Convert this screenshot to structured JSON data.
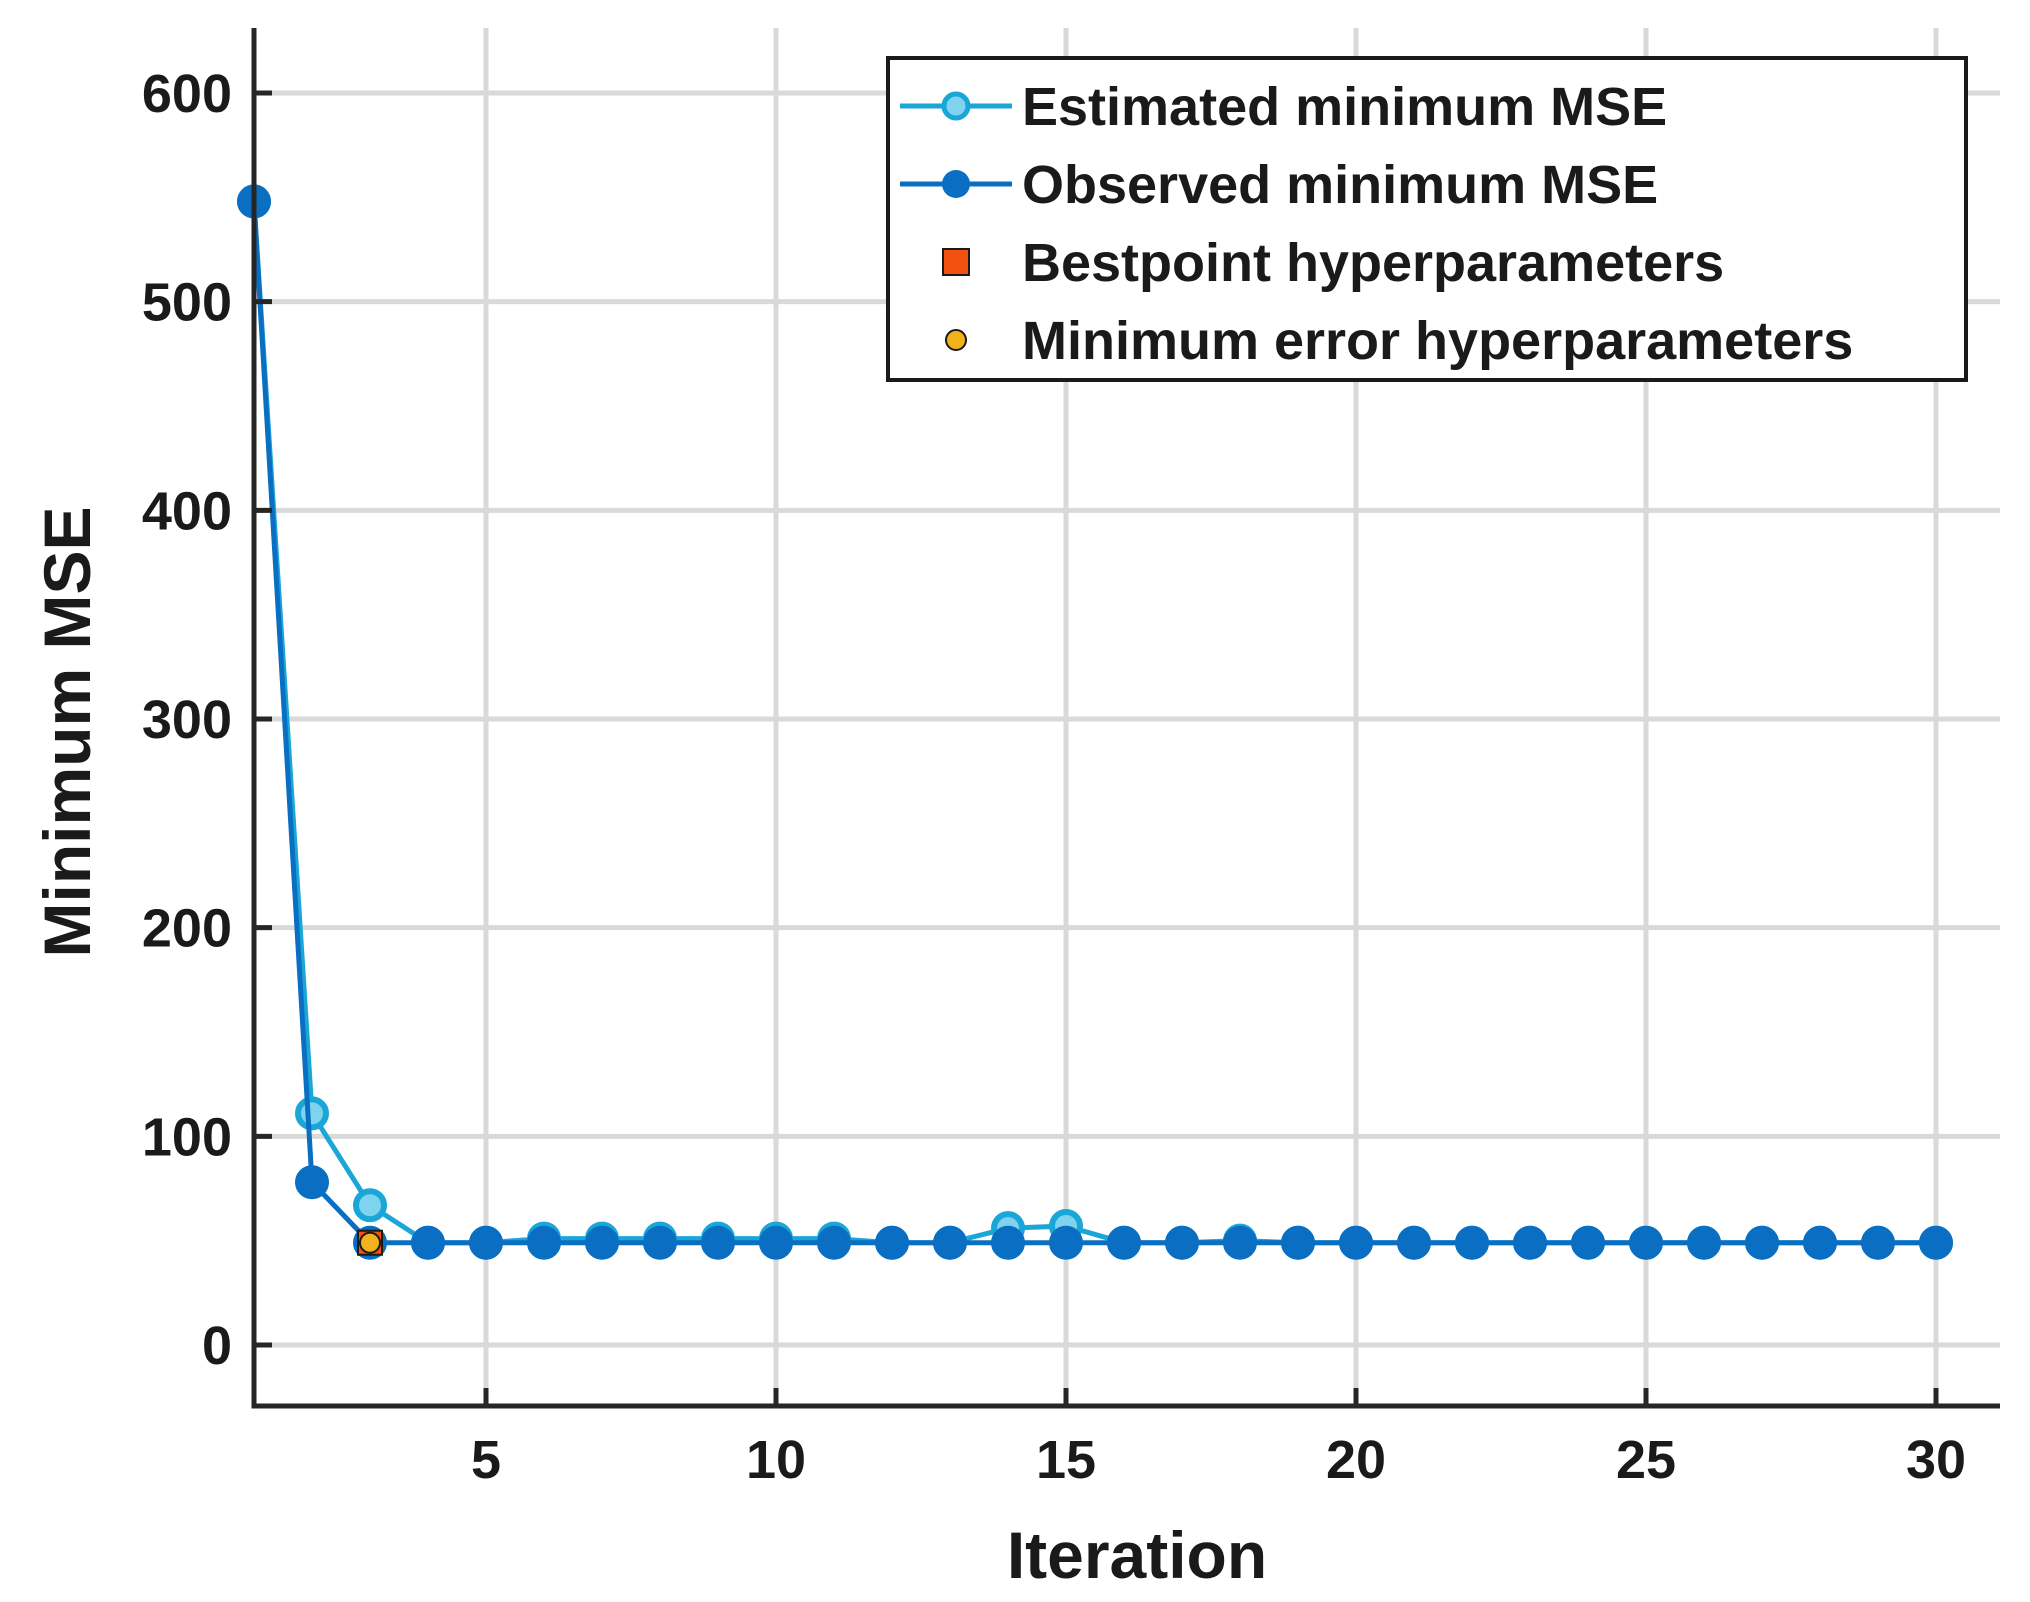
{
  "colors": {
    "estimated": "#1aa6d6",
    "estimated_fill": "#7fd3ee",
    "observed": "#0a6fc2",
    "bestpoint": "#f2510f",
    "min_error": "#f2b21b",
    "grid": "#d9d9d9",
    "axis": "#262626"
  },
  "chart_data": {
    "type": "line",
    "title": "",
    "xlabel": "Iteration",
    "ylabel": "Minimum MSE",
    "xlim": [
      1,
      31
    ],
    "ylim": [
      -30,
      630
    ],
    "xticks": [
      5,
      10,
      15,
      20,
      25,
      30
    ],
    "yticks": [
      0,
      100,
      200,
      300,
      400,
      500,
      600
    ],
    "grid": true,
    "legend_position": "top-right",
    "x": [
      1,
      2,
      3,
      4,
      5,
      6,
      7,
      8,
      9,
      10,
      11,
      12,
      13,
      14,
      15,
      16,
      17,
      18,
      19,
      20,
      21,
      22,
      23,
      24,
      25,
      26,
      27,
      28,
      29,
      30
    ],
    "series": [
      {
        "name": "Estimated minimum MSE",
        "marker": "open-circle",
        "values": [
          548,
          111,
          67,
          49,
          49,
          51,
          51,
          51,
          51,
          51,
          51,
          49,
          49,
          56,
          57,
          49,
          49,
          50,
          49,
          49,
          49,
          49,
          49,
          49,
          49,
          49,
          49,
          49,
          49,
          49
        ]
      },
      {
        "name": "Observed minimum MSE",
        "marker": "filled-circle",
        "values": [
          548,
          78,
          49,
          49,
          49,
          49,
          49,
          49,
          49,
          49,
          49,
          49,
          49,
          49,
          49,
          49,
          49,
          49,
          49,
          49,
          49,
          49,
          49,
          49,
          49,
          49,
          49,
          49,
          49,
          49
        ]
      }
    ],
    "points": [
      {
        "name": "Bestpoint hyperparameters",
        "marker": "square",
        "x": 3,
        "y": 49
      },
      {
        "name": "Minimum error hyperparameters",
        "marker": "small-circle",
        "x": 3,
        "y": 49
      }
    ]
  }
}
